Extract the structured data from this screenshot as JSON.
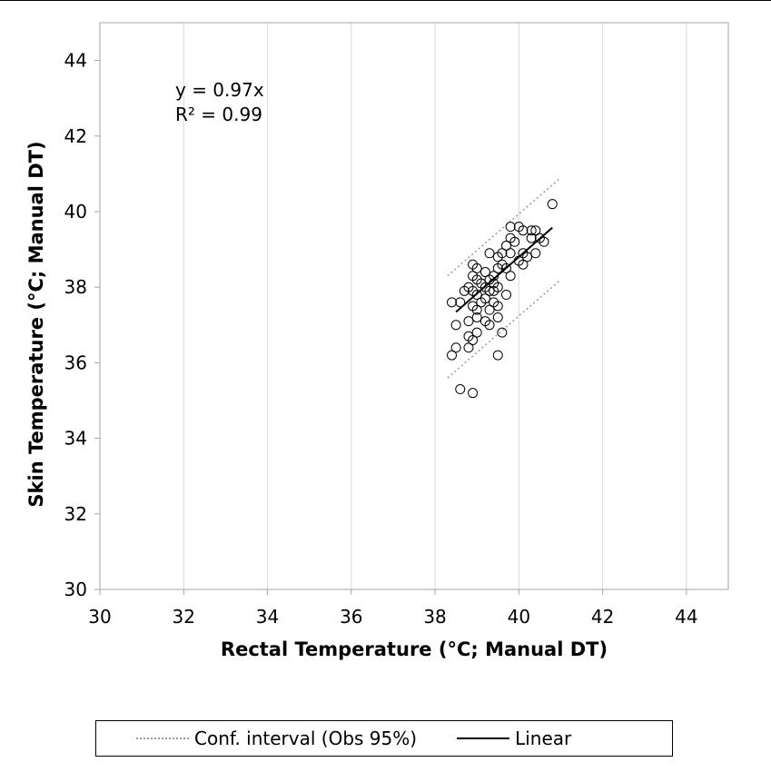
{
  "chart_data": {
    "type": "scatter",
    "xlabel": "Rectal Temperature (°C; Manual DT)",
    "ylabel": "Skin Temperature (°C; Manual DT)",
    "xlim": [
      30,
      45
    ],
    "ylim": [
      30,
      45
    ],
    "xticks": [
      "30",
      "32",
      "34",
      "36",
      "38",
      "40",
      "42",
      "44"
    ],
    "yticks": [
      "30",
      "32",
      "34",
      "36",
      "38",
      "40",
      "42",
      "44"
    ],
    "grid": "vertical",
    "annotation": [
      "y = 0.97x",
      "R² = 0.99"
    ],
    "legend": {
      "position": "bottom",
      "entries": [
        "Conf. interval (Obs 95%)",
        "Linear"
      ]
    },
    "fit": {
      "slope": 0.97,
      "x_range": [
        38.5,
        40.8
      ]
    },
    "conf_interval": {
      "upper": [
        [
          38.3,
          38.3
        ],
        [
          41.0,
          40.9
        ]
      ],
      "lower": [
        [
          38.3,
          35.6
        ],
        [
          41.0,
          38.2
        ]
      ]
    },
    "points": [
      [
        38.4,
        37.6
      ],
      [
        38.5,
        37.0
      ],
      [
        38.5,
        36.4
      ],
      [
        38.4,
        36.2
      ],
      [
        38.6,
        35.3
      ],
      [
        38.9,
        35.2
      ],
      [
        38.6,
        37.6
      ],
      [
        38.7,
        37.9
      ],
      [
        38.8,
        38.0
      ],
      [
        38.8,
        37.1
      ],
      [
        38.8,
        36.7
      ],
      [
        38.8,
        36.4
      ],
      [
        38.9,
        38.6
      ],
      [
        38.9,
        38.3
      ],
      [
        38.9,
        37.9
      ],
      [
        38.9,
        37.5
      ],
      [
        38.9,
        36.6
      ],
      [
        39.0,
        38.5
      ],
      [
        39.0,
        38.2
      ],
      [
        39.0,
        37.8
      ],
      [
        39.0,
        37.4
      ],
      [
        39.0,
        37.2
      ],
      [
        39.0,
        36.8
      ],
      [
        39.1,
        38.1
      ],
      [
        39.1,
        37.6
      ],
      [
        39.2,
        38.4
      ],
      [
        39.2,
        38.0
      ],
      [
        39.2,
        37.7
      ],
      [
        39.2,
        37.1
      ],
      [
        39.3,
        38.9
      ],
      [
        39.3,
        38.2
      ],
      [
        39.3,
        37.9
      ],
      [
        39.3,
        37.4
      ],
      [
        39.3,
        37.0
      ],
      [
        39.4,
        38.3
      ],
      [
        39.4,
        38.1
      ],
      [
        39.4,
        37.9
      ],
      [
        39.4,
        37.6
      ],
      [
        39.5,
        38.8
      ],
      [
        39.5,
        38.5
      ],
      [
        39.5,
        38.0
      ],
      [
        39.5,
        37.5
      ],
      [
        39.5,
        37.2
      ],
      [
        39.5,
        36.2
      ],
      [
        39.6,
        38.9
      ],
      [
        39.6,
        38.6
      ],
      [
        39.6,
        36.8
      ],
      [
        39.7,
        39.1
      ],
      [
        39.7,
        38.5
      ],
      [
        39.7,
        37.8
      ],
      [
        39.8,
        39.6
      ],
      [
        39.8,
        39.3
      ],
      [
        39.8,
        38.9
      ],
      [
        39.8,
        38.3
      ],
      [
        39.9,
        39.2
      ],
      [
        40.0,
        39.6
      ],
      [
        40.0,
        38.7
      ],
      [
        40.1,
        39.5
      ],
      [
        40.1,
        38.9
      ],
      [
        40.1,
        38.6
      ],
      [
        40.2,
        38.8
      ],
      [
        40.3,
        39.5
      ],
      [
        40.3,
        39.3
      ],
      [
        40.4,
        38.9
      ],
      [
        40.4,
        39.5
      ],
      [
        40.5,
        39.3
      ],
      [
        40.6,
        39.2
      ],
      [
        40.8,
        40.2
      ]
    ]
  }
}
